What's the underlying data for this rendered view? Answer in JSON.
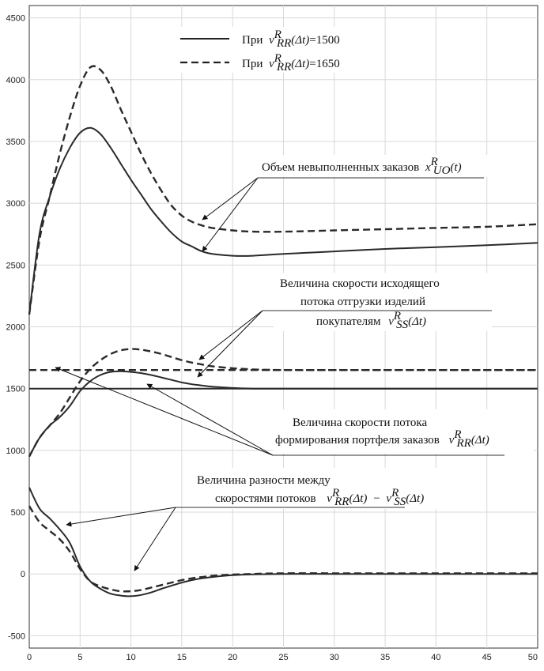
{
  "chart_data": {
    "type": "line",
    "title": "",
    "xlabel": "",
    "ylabel": "",
    "xlim": [
      0,
      50
    ],
    "ylim": [
      -600,
      4600
    ],
    "grid": true,
    "x_ticks": [
      0,
      5,
      10,
      15,
      20,
      25,
      30,
      35,
      40,
      45,
      50
    ],
    "y_ticks": [
      -500,
      0,
      500,
      1000,
      1500,
      2000,
      2500,
      3000,
      3500,
      4000,
      4500
    ],
    "legend": {
      "placement": "top-center",
      "entries": [
        {
          "style": "solid",
          "prefix": "При",
          "symbol": "v",
          "sup": "R",
          "sub": "RR",
          "arg": "(Δt)",
          "value": "=1500"
        },
        {
          "style": "dashed",
          "prefix": "При",
          "symbol": "v",
          "sup": "R",
          "sub": "RR",
          "arg": "(Δt)",
          "value": "=1650"
        }
      ]
    },
    "annotations": {
      "backlog": {
        "text": "Объем невыполненных заказов",
        "symbol": "x",
        "sup": "R",
        "sub": "UO",
        "arg": "(t)"
      },
      "outflow": {
        "line1": "Величина скорости исходящего",
        "line2": "потока отгрузки изделий",
        "line3": "покупателям",
        "symbol": "v",
        "sup": "R",
        "sub": "SS",
        "arg": "(Δt)"
      },
      "inflow": {
        "line1": "Величина скорости потока",
        "line2": "формирования портфеля заказов",
        "symbol": "v",
        "sup": "R",
        "sub": "RR",
        "arg": "(Δt)"
      },
      "difference": {
        "line1": "Величина разности между",
        "line2": "скоростями потоков",
        "sym1": "v",
        "sup1": "R",
        "sub1": "RR",
        "arg1": "(Δt)",
        "minus": "−",
        "sym2": "v",
        "sup2": "R",
        "sub2": "SS",
        "arg2": "(Δt)"
      }
    },
    "series": [
      {
        "group": "backlog",
        "style": "solid",
        "x": [
          0,
          1,
          2,
          3,
          4,
          5,
          6,
          7,
          8,
          9,
          10,
          11,
          12,
          13,
          14,
          15,
          16,
          17,
          18,
          20,
          22,
          25,
          30,
          35,
          40,
          45,
          50
        ],
        "y": [
          2100,
          2750,
          3050,
          3280,
          3450,
          3570,
          3610,
          3560,
          3450,
          3320,
          3190,
          3070,
          2950,
          2850,
          2760,
          2690,
          2650,
          2610,
          2590,
          2575,
          2575,
          2590,
          2610,
          2630,
          2645,
          2660,
          2680
        ]
      },
      {
        "group": "backlog",
        "style": "dashed",
        "x": [
          0,
          1,
          2,
          3,
          4,
          5,
          6,
          7,
          8,
          9,
          10,
          11,
          12,
          13,
          14,
          15,
          16,
          17,
          18,
          20,
          22,
          25,
          30,
          35,
          40,
          45,
          50
        ],
        "y": [
          2100,
          2700,
          3050,
          3400,
          3700,
          3950,
          4100,
          4080,
          3950,
          3760,
          3580,
          3400,
          3240,
          3100,
          2980,
          2900,
          2850,
          2820,
          2800,
          2780,
          2770,
          2770,
          2780,
          2790,
          2800,
          2810,
          2830
        ]
      },
      {
        "group": "outflow",
        "style": "solid",
        "x": [
          0,
          1,
          2,
          3,
          4,
          5,
          6,
          7,
          8,
          9,
          10,
          11,
          12,
          13,
          14,
          15,
          16,
          17,
          18,
          20,
          22,
          25,
          30,
          35,
          40,
          45,
          50
        ],
        "y": [
          950,
          1100,
          1200,
          1270,
          1360,
          1480,
          1560,
          1610,
          1635,
          1640,
          1635,
          1625,
          1610,
          1590,
          1570,
          1550,
          1535,
          1525,
          1515,
          1505,
          1500,
          1500,
          1500,
          1500,
          1500,
          1500,
          1500
        ]
      },
      {
        "group": "outflow",
        "style": "dashed",
        "x": [
          0,
          1,
          2,
          3,
          4,
          5,
          6,
          7,
          8,
          9,
          10,
          11,
          12,
          13,
          14,
          15,
          16,
          17,
          18,
          20,
          22,
          25,
          30,
          35,
          40,
          45,
          50
        ],
        "y": [
          950,
          1100,
          1200,
          1300,
          1430,
          1560,
          1660,
          1730,
          1780,
          1810,
          1820,
          1815,
          1800,
          1780,
          1755,
          1730,
          1710,
          1695,
          1680,
          1665,
          1655,
          1650,
          1650,
          1650,
          1650,
          1650,
          1650
        ]
      },
      {
        "group": "inflow",
        "style": "solid",
        "x": [
          0,
          50
        ],
        "y": [
          1500,
          1500
        ]
      },
      {
        "group": "inflow",
        "style": "dashed",
        "x": [
          0,
          50
        ],
        "y": [
          1650,
          1650
        ]
      },
      {
        "group": "difference",
        "style": "solid",
        "x": [
          0,
          1,
          2,
          3,
          4,
          5,
          6,
          7,
          8,
          9,
          10,
          11,
          12,
          13,
          14,
          15,
          16,
          17,
          18,
          20,
          22,
          25,
          30,
          35,
          40,
          45,
          50
        ],
        "y": [
          700,
          530,
          450,
          360,
          250,
          60,
          -60,
          -120,
          -160,
          -175,
          -180,
          -170,
          -150,
          -120,
          -95,
          -70,
          -50,
          -35,
          -25,
          -10,
          -3,
          0,
          0,
          0,
          0,
          0,
          0
        ]
      },
      {
        "group": "difference",
        "style": "dashed",
        "x": [
          0,
          1,
          2,
          3,
          4,
          5,
          6,
          7,
          8,
          9,
          10,
          11,
          12,
          13,
          14,
          15,
          16,
          17,
          18,
          20,
          22,
          25,
          30,
          35,
          40,
          45,
          50
        ],
        "y": [
          550,
          420,
          350,
          280,
          180,
          40,
          -60,
          -100,
          -125,
          -140,
          -140,
          -130,
          -110,
          -90,
          -70,
          -50,
          -35,
          -25,
          -15,
          -5,
          0,
          5,
          5,
          5,
          5,
          5,
          5
        ]
      }
    ]
  }
}
